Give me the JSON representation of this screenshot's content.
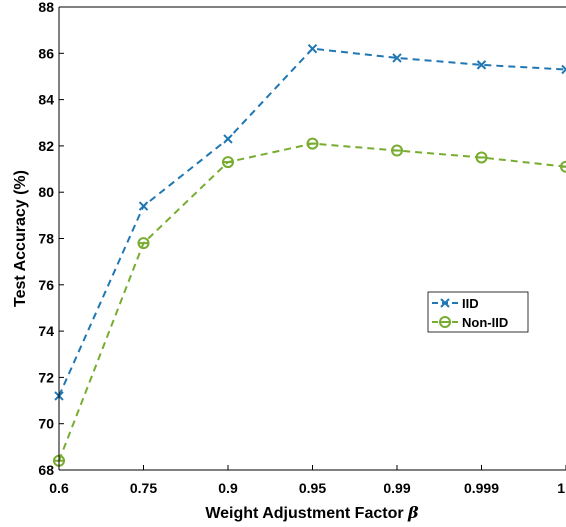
{
  "chart_data": {
    "type": "line",
    "categories": [
      "0.6",
      "0.75",
      "0.9",
      "0.95",
      "0.99",
      "0.999",
      "1"
    ],
    "series": [
      {
        "name": "IID",
        "values": [
          71.2,
          79.4,
          82.3,
          86.2,
          85.8,
          85.5,
          85.3
        ],
        "color": "#1f77b4",
        "marker": "x"
      },
      {
        "name": "Non-IID",
        "values": [
          68.4,
          77.8,
          81.3,
          82.1,
          81.8,
          81.5,
          81.1
        ],
        "color": "#77ac30",
        "marker": "circle"
      }
    ],
    "xlabel": "Weight Adjustment Factor",
    "xlabel_symbol": "β",
    "ylabel": "Test Accuracy (%)",
    "ylim": [
      68,
      88
    ],
    "yticks": [
      "68",
      "70",
      "72",
      "74",
      "76",
      "78",
      "80",
      "82",
      "84",
      "86",
      "88"
    ],
    "grid": false,
    "legend_position": "right-middle",
    "line_style": "dashed"
  }
}
